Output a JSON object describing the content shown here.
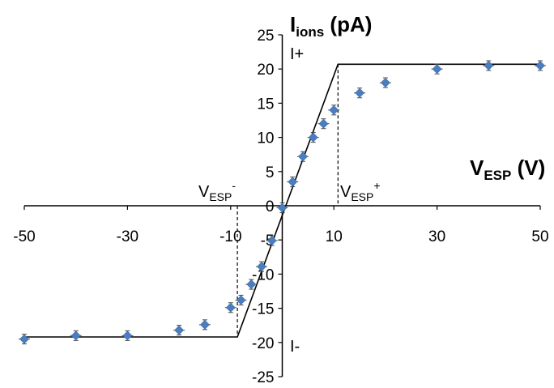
{
  "chart_data": {
    "type": "scatter",
    "title": "",
    "xlabel": {
      "main": "V",
      "sub": "ESP",
      "unit": " (V)"
    },
    "ylabel": {
      "main": "I",
      "sub": "ions",
      "unit": " (pA)"
    },
    "xlim": [
      -50,
      50
    ],
    "ylim": [
      -25,
      25
    ],
    "xticks": [
      -50,
      -30,
      -10,
      10,
      30,
      50
    ],
    "yticks": [
      -25,
      -20,
      -15,
      -10,
      -5,
      0,
      5,
      10,
      15,
      20,
      25
    ],
    "grid": false,
    "legend": "none",
    "marker_color": "#4a7ebf",
    "series": [
      {
        "x": [
          -50,
          -40,
          -30,
          -20,
          -15,
          -10,
          -8,
          -6,
          -4,
          -2,
          0,
          2,
          4,
          6,
          8,
          10,
          15,
          20,
          30,
          40,
          50
        ],
        "y": [
          -19.5,
          -19.0,
          -19.0,
          -18.2,
          -17.4,
          -14.9,
          -13.8,
          -11.5,
          -8.9,
          -5.1,
          -0.3,
          3.5,
          7.2,
          10.0,
          12.0,
          14.0,
          16.5,
          18.0,
          20.0,
          20.5,
          20.5
        ]
      }
    ],
    "model_line": {
      "points": [
        [
          -50,
          -19.2
        ],
        [
          -8.7,
          -19.2
        ],
        [
          10.8,
          20.7
        ],
        [
          50,
          20.7
        ]
      ]
    },
    "annotations": {
      "i_plus": "I+",
      "i_minus": "I-",
      "v_plus": {
        "main": "V",
        "sub": "ESP",
        "sup": "+",
        "x": 10.8,
        "y": 20.7
      },
      "v_minus": {
        "main": "V",
        "sub": "ESP",
        "sup": "-",
        "x": -8.7,
        "y": -19.2
      }
    }
  }
}
